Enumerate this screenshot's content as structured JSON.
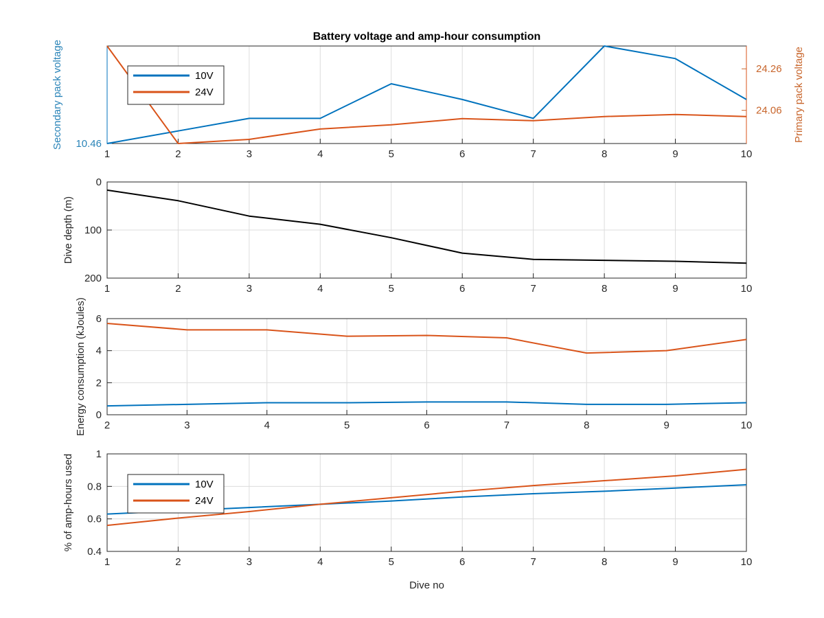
{
  "chart_data": [
    {
      "type": "line",
      "title": "Battery voltage and amp-hour consumption",
      "xlabel": "",
      "ylabel_left": "Secondary pack voltage",
      "ylabel_right": "Primary pack voltage",
      "x": [
        1,
        2,
        3,
        4,
        5,
        6,
        7,
        8,
        9,
        10
      ],
      "xlim": [
        1,
        10
      ],
      "ylim_left": [
        10.46,
        10.77
      ],
      "ylim_right": [
        23.9,
        24.37
      ],
      "yticks_left": [
        10.46
      ],
      "yticks_right": [
        24.06,
        24.26
      ],
      "grid": true,
      "legend": "top-left",
      "series": [
        {
          "name": "10V",
          "axis": "left",
          "color": "#0072BD",
          "values": [
            10.46,
            10.5,
            10.54,
            10.54,
            10.65,
            10.6,
            10.54,
            10.77,
            10.73,
            10.6
          ]
        },
        {
          "name": "24V",
          "axis": "right",
          "color": "#D95319",
          "values": [
            24.37,
            23.9,
            23.92,
            23.97,
            23.99,
            24.02,
            24.01,
            24.03,
            24.04,
            24.03
          ]
        }
      ]
    },
    {
      "type": "line",
      "title": "",
      "xlabel": "",
      "ylabel": "Dive depth (m)",
      "x": [
        1,
        2,
        3,
        4,
        5,
        6,
        7,
        8,
        9,
        10
      ],
      "xlim": [
        1,
        10
      ],
      "ylim": [
        0,
        200
      ],
      "y_reversed": true,
      "yticks": [
        0,
        100,
        200
      ],
      "grid": true,
      "series": [
        {
          "color": "#000000",
          "values": [
            17,
            39,
            71,
            88,
            116,
            148,
            161,
            163,
            165,
            169
          ]
        }
      ]
    },
    {
      "type": "line",
      "title": "",
      "xlabel": "",
      "ylabel": "Energy consumption (kJoules)",
      "x": [
        2,
        3,
        4,
        5,
        6,
        7,
        8,
        9,
        10
      ],
      "xlim": [
        2,
        10
      ],
      "ylim": [
        0,
        6
      ],
      "yticks": [
        0,
        2,
        4,
        6
      ],
      "grid": true,
      "series": [
        {
          "color": "#0072BD",
          "values": [
            0.55,
            0.65,
            0.75,
            0.75,
            0.8,
            0.8,
            0.65,
            0.65,
            0.75
          ]
        },
        {
          "color": "#D95319",
          "values": [
            5.7,
            5.3,
            5.3,
            4.9,
            4.95,
            4.8,
            3.85,
            4.0,
            4.7
          ]
        }
      ]
    },
    {
      "type": "line",
      "title": "",
      "xlabel": "Dive no",
      "ylabel": "% of amp-hours used",
      "x": [
        1,
        2,
        3,
        4,
        5,
        6,
        7,
        8,
        9,
        10
      ],
      "xlim": [
        1,
        10
      ],
      "ylim": [
        0.4,
        1
      ],
      "yticks": [
        0.4,
        0.6,
        0.8,
        1
      ],
      "grid": true,
      "legend": "left",
      "series": [
        {
          "name": "10V",
          "color": "#0072BD",
          "values": [
            0.63,
            0.65,
            0.67,
            0.69,
            0.71,
            0.735,
            0.755,
            0.77,
            0.79,
            0.81
          ]
        },
        {
          "name": "24V",
          "color": "#D95319",
          "values": [
            0.56,
            0.605,
            0.645,
            0.69,
            0.73,
            0.77,
            0.805,
            0.835,
            0.865,
            0.905
          ]
        }
      ]
    }
  ]
}
